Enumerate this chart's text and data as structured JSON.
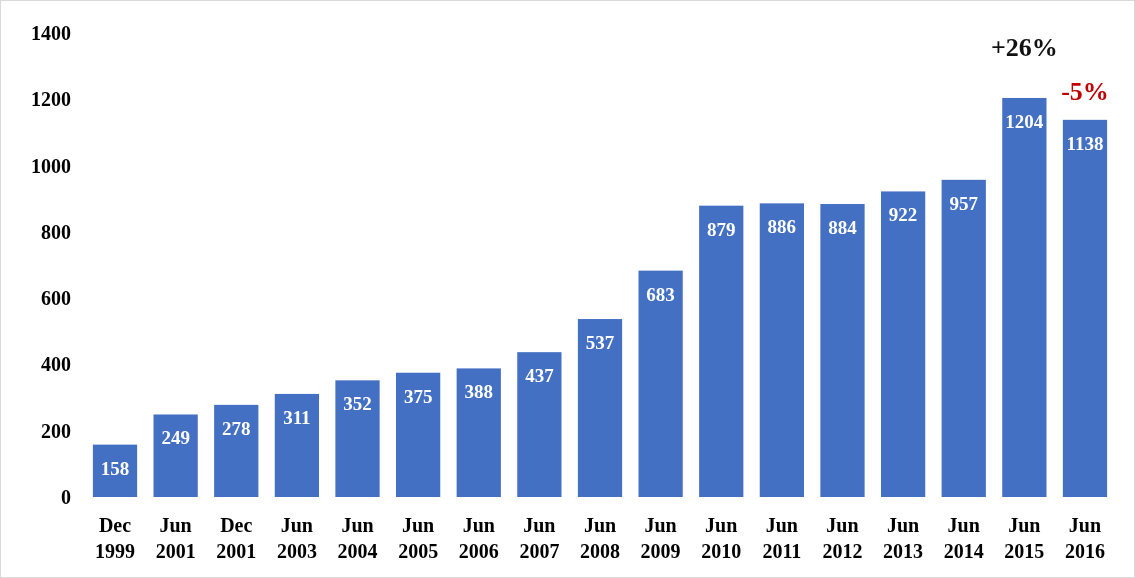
{
  "chart_data": {
    "type": "bar",
    "categories": [
      "Dec 1999",
      "Jun 2001",
      "Dec 2001",
      "Jun 2003",
      "Jun 2004",
      "Jun 2005",
      "Jun 2006",
      "Jun 2007",
      "Jun 2008",
      "Jun 2009",
      "Jun 2010",
      "Jun 2011",
      "Jun 2012",
      "Jun 2013",
      "Jun 2014",
      "Jun 2015",
      "Jun 2016"
    ],
    "values": [
      158,
      249,
      278,
      311,
      352,
      375,
      388,
      437,
      537,
      683,
      879,
      886,
      884,
      922,
      957,
      1204,
      1138
    ],
    "color": "#4470c4",
    "ylim": [
      0,
      1400
    ],
    "yticks": [
      0,
      200,
      400,
      600,
      800,
      1000,
      1200,
      1400
    ],
    "data_labels": true,
    "annotations": [
      {
        "text": "+26%",
        "x": "Jun 2015",
        "y": 1204
      },
      {
        "text": "-5%",
        "x": "Jun 2016",
        "y": 1138
      }
    ]
  }
}
